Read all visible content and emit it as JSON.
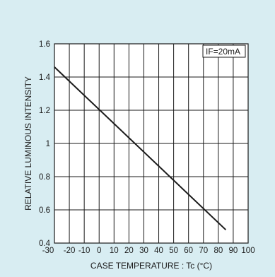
{
  "colors": {
    "background": "#d8edf2",
    "plot_background": "#ffffff",
    "grid": "#1a1a1a",
    "line": "#1a1a1a"
  },
  "chart_data": {
    "type": "line",
    "title": "",
    "xlabel": "CASE  TEMPERATURE : Tc  (°C)",
    "ylabel": "RELATIVE  LUMINOUS  INTENSITY",
    "xlim": [
      -30,
      100
    ],
    "ylim": [
      0.4,
      1.6
    ],
    "x_ticks": [
      -30,
      -20,
      -10,
      0,
      10,
      20,
      30,
      40,
      50,
      60,
      70,
      80,
      90,
      100
    ],
    "x_tick_labels": [
      "-30",
      "-20",
      "-10",
      "0",
      "10",
      "20",
      "30",
      "40",
      "50",
      "60",
      "70",
      "80",
      "90",
      "100"
    ],
    "y_ticks": [
      0.4,
      0.6,
      0.8,
      1.0,
      1.2,
      1.4,
      1.6
    ],
    "y_tick_labels": [
      "0.4",
      "0.6",
      "0.8",
      "1",
      "1.2",
      "1.4",
      "1.6"
    ],
    "grid": true,
    "condition_label": "IF=20mA",
    "series": [
      {
        "name": "",
        "x": [
          -30,
          85
        ],
        "y": [
          1.46,
          0.48
        ]
      }
    ]
  }
}
